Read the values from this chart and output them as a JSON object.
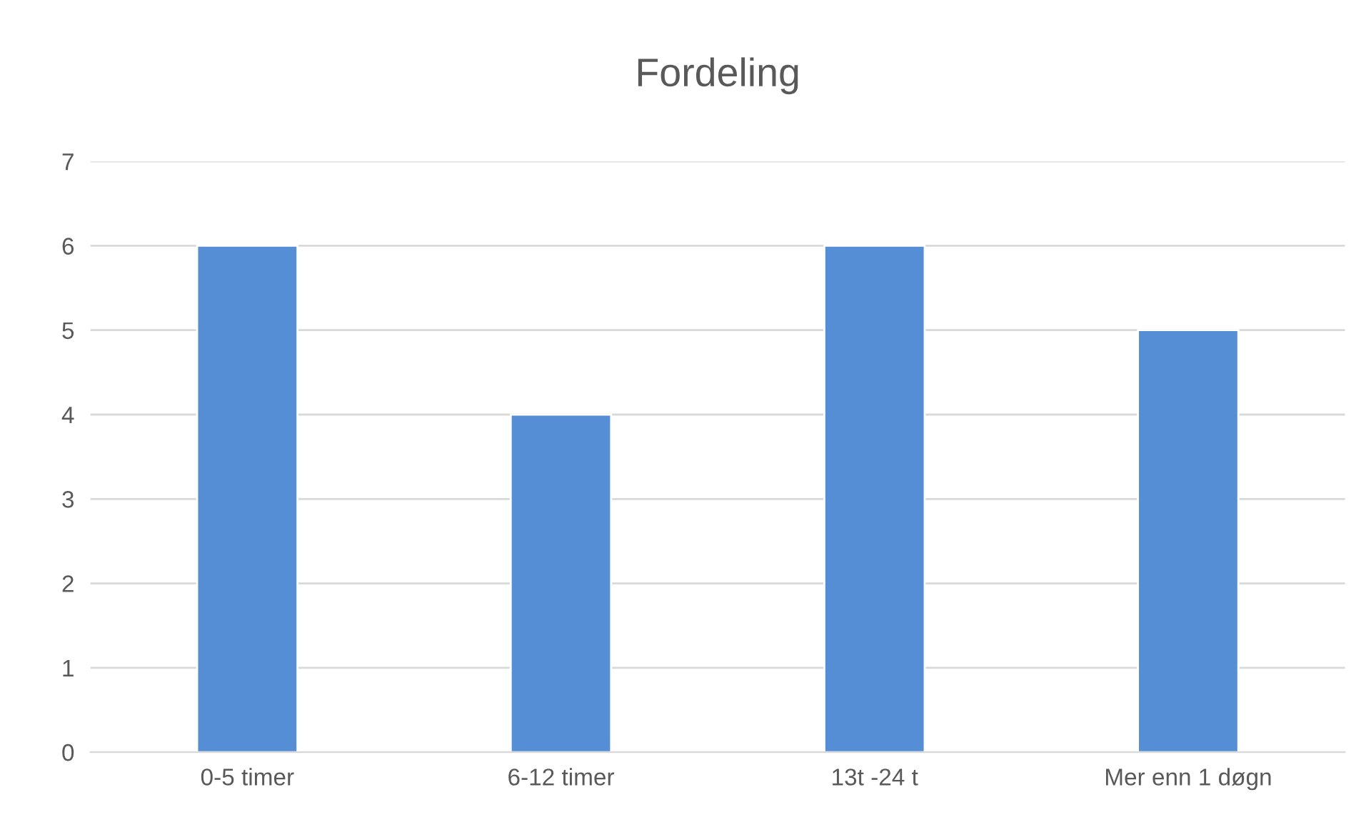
{
  "chart_data": {
    "type": "bar",
    "title": "Fordeling",
    "categories": [
      "0-5 timer",
      "6-12 timer",
      "13t -24 t",
      "Mer enn 1 døgn"
    ],
    "values": [
      6,
      4,
      6,
      5
    ],
    "color": "#558ed5",
    "ylim": [
      0,
      7
    ],
    "yticks": [
      0,
      1,
      2,
      3,
      4,
      5,
      6,
      7
    ],
    "grid": "y",
    "legend": false
  }
}
